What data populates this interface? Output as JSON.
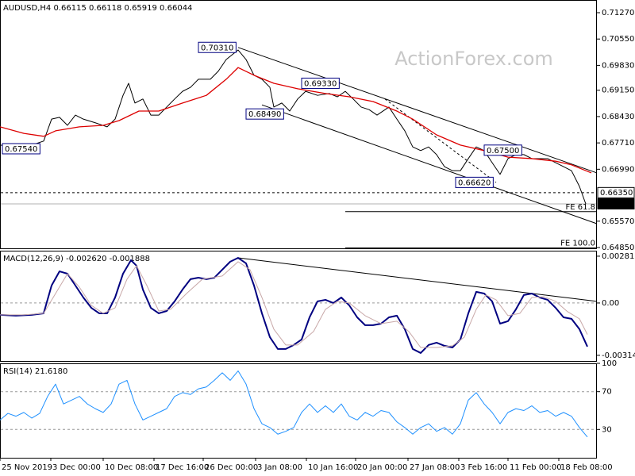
{
  "chart_data": [
    {
      "type": "line",
      "title": "AUDUSD,H4  0.66115 0.66118 0.65919 0.66044",
      "watermark": "ActionForex.com",
      "xlim": [
        0,
        376
      ],
      "ylim": [
        0.64828,
        0.71617
      ],
      "yticks": [
        {
          "value": 0.7127,
          "label": "0.71270"
        },
        {
          "value": 0.7055,
          "label": "0.70550"
        },
        {
          "value": 0.6983,
          "label": "0.69830"
        },
        {
          "value": 0.6915,
          "label": "0.69150"
        },
        {
          "value": 0.6843,
          "label": "0.68430"
        },
        {
          "value": 0.6771,
          "label": "0.67710"
        },
        {
          "value": 0.6699,
          "label": "0.66990"
        },
        {
          "value": 0.6557,
          "label": "0.65570"
        },
        {
          "value": 0.6485,
          "label": "0.64850"
        }
      ],
      "series": [
        {
          "color": "#000000",
          "width": 1,
          "x": [
            0,
            10,
            20,
            27.5,
            32.5,
            37.5,
            42.5,
            47.5,
            52.5,
            60,
            67.5,
            72.5,
            77.5,
            81,
            85,
            90,
            95,
            100,
            105,
            110,
            115,
            120,
            125,
            132.5,
            137.5,
            142.5,
            150,
            155,
            160,
            165,
            170,
            172.5,
            177.5,
            182.5,
            187.5,
            192.5,
            200,
            207.5,
            212.5,
            217.5,
            222.5,
            227.5,
            232.5,
            237.5,
            245,
            250,
            255,
            260,
            265,
            270,
            275,
            280,
            285,
            290,
            295,
            300,
            305,
            310,
            315,
            320,
            325,
            330,
            335,
            340,
            345,
            350,
            355,
            360,
            365,
            369
          ],
          "values": [
            0.6765,
            0.676,
            0.6765,
            0.6776,
            0.6836,
            0.6841,
            0.6819,
            0.6847,
            0.6836,
            0.6826,
            0.6815,
            0.6836,
            0.6901,
            0.6934,
            0.688,
            0.6891,
            0.6847,
            0.6847,
            0.6869,
            0.6891,
            0.6912,
            0.6923,
            0.6945,
            0.6945,
            0.6967,
            0.6999,
            0.7025,
            0.6999,
            0.6956,
            0.6945,
            0.6923,
            0.6869,
            0.688,
            0.6858,
            0.6891,
            0.6912,
            0.6901,
            0.6906,
            0.6897,
            0.6912,
            0.6891,
            0.6869,
            0.6862,
            0.6847,
            0.6869,
            0.6836,
            0.6804,
            0.676,
            0.675,
            0.676,
            0.6739,
            0.6706,
            0.6695,
            0.6695,
            0.6728,
            0.676,
            0.675,
            0.6717,
            0.6685,
            0.6728,
            0.6739,
            0.6739,
            0.6728,
            0.6728,
            0.6728,
            0.6717,
            0.6706,
            0.6695,
            0.6652,
            0.6604
          ]
        },
        {
          "color": "#dd0000",
          "width": 1.3,
          "x": [
            0,
            15,
            27.5,
            35,
            50,
            65,
            75,
            87.5,
            100,
            115,
            130,
            142.5,
            150,
            160,
            172.5,
            187.5,
            205,
            220,
            235,
            250,
            260,
            275,
            290,
            305,
            320,
            335,
            350,
            360,
            372.5
          ],
          "values": [
            0.6815,
            0.6797,
            0.6789,
            0.6804,
            0.6815,
            0.6819,
            0.6832,
            0.6858,
            0.6858,
            0.688,
            0.6901,
            0.6945,
            0.6977,
            0.6956,
            0.6934,
            0.6919,
            0.6906,
            0.6897,
            0.6884,
            0.6858,
            0.6836,
            0.6793,
            0.6765,
            0.675,
            0.6732,
            0.6728,
            0.6721,
            0.6711,
            0.6689
          ]
        }
      ],
      "trendlines": [
        {
          "x": [
            150,
            376
          ],
          "values": [
            0.7032,
            0.6689
          ],
          "style": "solid"
        },
        {
          "x": [
            165,
            376
          ],
          "values": [
            0.6875,
            0.655
          ],
          "style": "solid"
        },
        {
          "x": [
            242.5,
            312.5
          ],
          "values": [
            0.6891,
            0.6663
          ],
          "style": "dashed"
        }
      ],
      "hlines": [
        {
          "value": 0.6635,
          "style": "dashed",
          "color": "#000000"
        },
        {
          "value": 0.66044,
          "style": "solid",
          "color": "#b0b0b0"
        }
      ],
      "fe_levels": [
        {
          "label": "FE 61.8",
          "value": 0.6583,
          "x": 217.5
        },
        {
          "label": "FE 100.0",
          "value": 0.6484,
          "x": 217.5
        }
      ],
      "annotations": [
        {
          "label": "0.67540",
          "value": 0.6754,
          "x": 1.5
        },
        {
          "label": "0.70310",
          "value": 0.7031,
          "x": 125
        },
        {
          "label": "0.69330",
          "value": 0.6933,
          "x": 190
        },
        {
          "label": "0.68490",
          "value": 0.6849,
          "x": 155
        },
        {
          "label": "0.67500",
          "value": 0.675,
          "x": 305
        },
        {
          "label": "0.66620",
          "value": 0.6662,
          "x": 287
        }
      ],
      "price_tags": [
        {
          "label": "0.66350",
          "value": 0.6635,
          "style": "outline"
        },
        {
          "label": "0.66044",
          "value": 0.66044,
          "style": "filled"
        }
      ]
    },
    {
      "type": "line",
      "title": "MACD(12,26,9) -0.002620 -0.001888",
      "xlim": [
        0,
        376
      ],
      "ylim": [
        -0.00348,
        0.00314
      ],
      "yticks": [
        0.00281,
        {
          "value": 0,
          "label": "0.00"
        },
        -0.003141
      ],
      "series": [
        {
          "color": "#000080",
          "width": 2,
          "x": [
            0,
            10,
            20,
            27.5,
            32.5,
            37.5,
            42.5,
            47.5,
            52.5,
            57.5,
            62.5,
            67.5,
            72.5,
            77.5,
            82.5,
            86,
            90,
            95,
            100,
            105,
            110,
            115,
            120,
            125,
            130,
            135,
            140,
            145,
            150,
            155,
            160,
            165,
            170,
            175,
            180,
            185,
            190,
            195,
            200,
            205,
            210,
            215,
            220,
            225,
            230,
            235,
            240,
            245,
            250,
            255,
            260,
            265,
            270,
            275,
            280,
            285,
            290,
            295,
            300,
            305,
            310,
            315,
            320,
            325,
            330,
            335,
            340,
            345,
            350,
            355,
            360,
            365,
            370
          ],
          "values": [
            -0.00071,
            -0.00076,
            -0.00071,
            -0.00062,
            0.00105,
            0.0019,
            0.00176,
            0.00105,
            0.00033,
            -0.00029,
            -0.00062,
            -0.00062,
            0.00033,
            0.00176,
            0.00257,
            0.00224,
            0.00081,
            -0.00029,
            -0.00062,
            -0.00048,
            0.0001,
            0.00081,
            0.00143,
            0.00152,
            0.00143,
            0.00152,
            0.002,
            0.00248,
            0.00271,
            0.00238,
            0.00105,
            -0.00062,
            -0.00205,
            -0.00276,
            -0.00276,
            -0.00252,
            -0.00219,
            -0.00086,
            0.0001,
            0.00019,
            0,
            0.00033,
            -0.00014,
            -0.00086,
            -0.00133,
            -0.00133,
            -0.00124,
            -0.00086,
            -0.00076,
            -0.00157,
            -0.00276,
            -0.003,
            -0.00252,
            -0.00238,
            -0.00257,
            -0.00267,
            -0.00219,
            -0.00062,
            0.00067,
            0.00057,
            0.0001,
            -0.00124,
            -0.00109,
            -0.00038,
            0.00048,
            0.00057,
            0.00033,
            0.00019,
            -0.00029,
            -0.00086,
            -0.00095,
            -0.00157,
            -0.00262
          ]
        },
        {
          "color": "#c8a8a8",
          "width": 1,
          "x": [
            0,
            15,
            27.5,
            35,
            42.5,
            50,
            57.5,
            65,
            72.5,
            80,
            86,
            92.5,
            100,
            107.5,
            117.5,
            127.5,
            140,
            150,
            157.5,
            165,
            172.5,
            180,
            187.5,
            197.5,
            205,
            212.5,
            220,
            230,
            240,
            250,
            257.5,
            265,
            275,
            285,
            292.5,
            300,
            306,
            312.5,
            320,
            327.5,
            335,
            342.5,
            350,
            357.5,
            365,
            370
          ],
          "values": [
            -0.00071,
            -0.00071,
            -0.00062,
            0.00057,
            0.00176,
            0.00095,
            -0.00014,
            -0.00062,
            -0.00029,
            0.00143,
            0.00224,
            0.00105,
            -0.00048,
            -0.00038,
            0.00057,
            0.00143,
            0.00162,
            0.00248,
            0.002,
            0.00033,
            -0.00157,
            -0.00252,
            -0.00252,
            -0.00171,
            -0.00038,
            0.0001,
            0,
            -0.00076,
            -0.00124,
            -0.00109,
            -0.00171,
            -0.00267,
            -0.00267,
            -0.00257,
            -0.00205,
            -0.00038,
            0.00048,
            0.00019,
            -0.00076,
            -0.00062,
            0.00033,
            0.00038,
            0.0001,
            -0.00052,
            -0.00095,
            -0.00189
          ]
        }
      ],
      "trendlines": [
        {
          "x": [
            150,
            376
          ],
          "values": [
            0.00271,
            0.0001
          ],
          "style": "solid"
        }
      ],
      "hlines": [
        {
          "value": 0,
          "style": "dashed",
          "color": "#999999"
        }
      ]
    },
    {
      "type": "line",
      "title": "RSI(14) 21.6180",
      "xlim": [
        0,
        376
      ],
      "ylim": [
        0,
        100
      ],
      "yticks": [
        100,
        70,
        30
      ],
      "xticks": [
        {
          "value": 0,
          "label": "25 Nov 2019"
        },
        {
          "value": 32,
          "label": "3 Dec 00:00"
        },
        {
          "value": 65,
          "label": "10 Dec 08:00"
        },
        {
          "value": 97,
          "label": "17 Dec 16:00"
        },
        {
          "value": 128,
          "label": "26 Dec 00:00"
        },
        {
          "value": 161,
          "label": "3 Jan 08:00"
        },
        {
          "value": 193,
          "label": "10 Jan 16:00"
        },
        {
          "value": 224,
          "label": "20 Jan 00:00"
        },
        {
          "value": 257,
          "label": "27 Jan 08:00"
        },
        {
          "value": 289,
          "label": "3 Feb 16:00"
        },
        {
          "value": 320,
          "label": "11 Feb 00:00"
        },
        {
          "value": 352,
          "label": "18 Feb 08:00"
        }
      ],
      "series": [
        {
          "color": "#1e90ff",
          "width": 1,
          "x": [
            0,
            5,
            10,
            15,
            20,
            25,
            30,
            35,
            40,
            45,
            50,
            55,
            60,
            65,
            70,
            75,
            80,
            85,
            90,
            95,
            100,
            105,
            110,
            115,
            120,
            125,
            130,
            135,
            140,
            145,
            150,
            155,
            160,
            165,
            170,
            175,
            180,
            185,
            190,
            195,
            200,
            205,
            210,
            215,
            220,
            225,
            230,
            235,
            240,
            245,
            250,
            255,
            260,
            265,
            270,
            275,
            280,
            285,
            290,
            295,
            300,
            305,
            310,
            315,
            320,
            325,
            330,
            335,
            340,
            345,
            350,
            355,
            360,
            365,
            370
          ],
          "values": [
            40,
            47,
            44,
            48,
            42,
            47,
            65,
            78,
            57,
            61,
            65,
            57,
            52,
            48,
            57,
            78,
            82,
            57,
            40,
            44,
            48,
            52,
            65,
            69,
            67,
            73,
            75,
            82,
            90,
            82,
            92,
            78,
            52,
            36,
            32,
            25,
            28,
            32,
            48,
            57,
            48,
            55,
            48,
            57,
            44,
            40,
            48,
            44,
            50,
            48,
            38,
            32,
            25,
            32,
            36,
            28,
            32,
            25,
            36,
            61,
            69,
            57,
            48,
            36,
            48,
            52,
            50,
            55,
            48,
            50,
            44,
            48,
            44,
            32,
            22
          ]
        }
      ],
      "hlines": [
        {
          "value": 70,
          "style": "dashed",
          "color": "#999999"
        },
        {
          "value": 30,
          "style": "dashed",
          "color": "#999999"
        }
      ]
    }
  ]
}
